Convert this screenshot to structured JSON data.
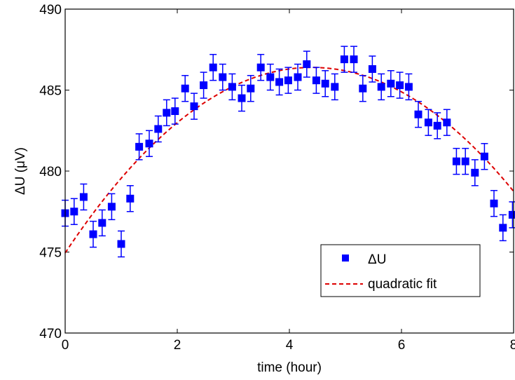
{
  "chart_data": {
    "type": "scatter",
    "title": "",
    "xlabel": "time (hour)",
    "ylabel": "ΔU (μV)",
    "xlim": [
      0,
      8
    ],
    "ylim": [
      470,
      490
    ],
    "xticks": [
      "0",
      "2",
      "4",
      "6",
      "8"
    ],
    "xtick_values": [
      0,
      2,
      4,
      6,
      8
    ],
    "yticks": [
      "470",
      "475",
      "480",
      "485",
      "490"
    ],
    "ytick_values": [
      470,
      475,
      480,
      485,
      490
    ],
    "grid": false,
    "legend_position": "bottom-right",
    "series": [
      {
        "name": "ΔU",
        "kind": "scatter-errorbar",
        "color": "#0000ff",
        "marker": "square",
        "x": [
          0.0,
          0.16,
          0.33,
          0.5,
          0.66,
          0.83,
          1.0,
          1.16,
          1.32,
          1.5,
          1.66,
          1.81,
          1.96,
          2.14,
          2.3,
          2.47,
          2.64,
          2.81,
          2.98,
          3.15,
          3.31,
          3.49,
          3.66,
          3.82,
          3.98,
          4.15,
          4.31,
          4.48,
          4.64,
          4.81,
          4.98,
          5.15,
          5.31,
          5.48,
          5.64,
          5.81,
          5.97,
          6.13,
          6.3,
          6.48,
          6.64,
          6.81,
          6.98,
          7.14,
          7.31,
          7.48,
          7.65,
          7.81,
          7.98
        ],
        "y": [
          477.4,
          477.5,
          478.4,
          476.1,
          476.8,
          477.8,
          475.5,
          478.3,
          481.5,
          481.7,
          482.6,
          483.6,
          483.7,
          485.1,
          484.0,
          485.3,
          486.4,
          485.8,
          485.2,
          484.5,
          485.1,
          486.4,
          485.8,
          485.5,
          485.6,
          485.8,
          486.6,
          485.6,
          485.4,
          485.2,
          486.9,
          486.9,
          485.1,
          486.3,
          485.2,
          485.4,
          485.3,
          485.2,
          483.5,
          483.0,
          482.8,
          483.0,
          480.6,
          480.6,
          479.9,
          480.9,
          478.0,
          476.5,
          477.3
        ],
        "error": 0.8
      },
      {
        "name": "quadratic fit",
        "kind": "line",
        "color": "#dd0000",
        "style": "dashed",
        "coefficients": {
          "a": -0.5911,
          "b": 5.204,
          "c": 474.946
        }
      }
    ]
  }
}
